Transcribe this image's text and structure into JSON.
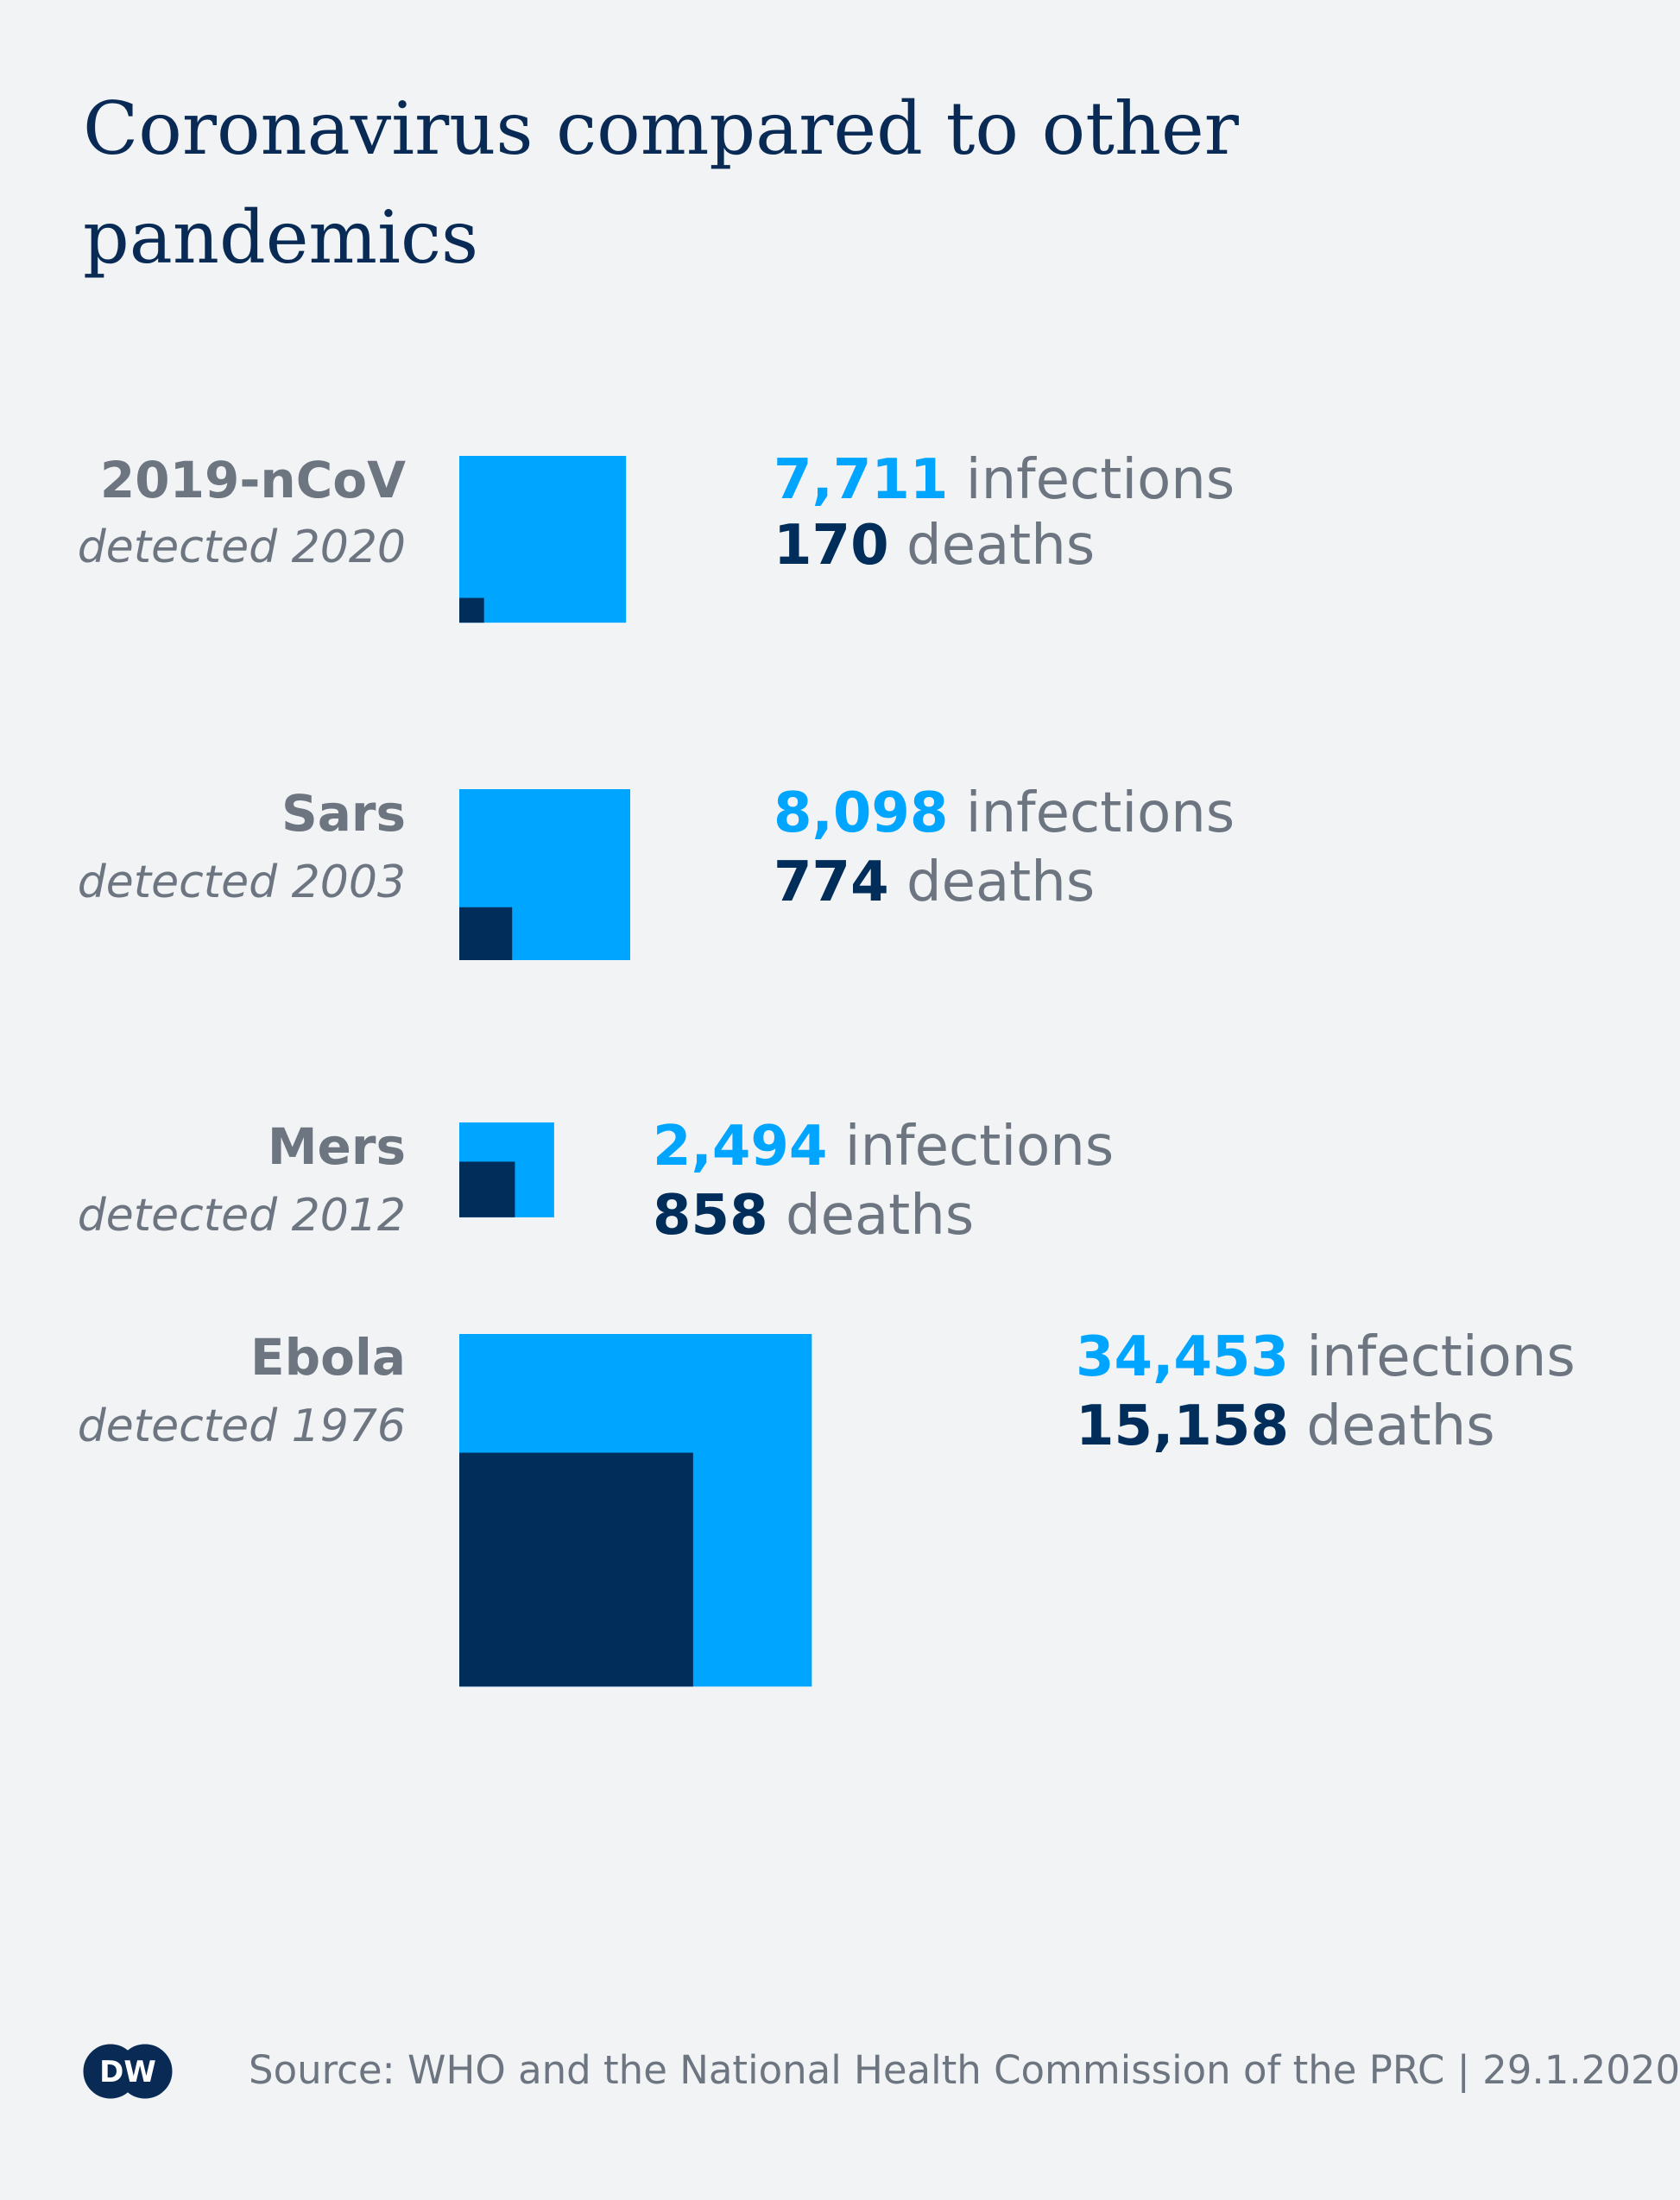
{
  "title": "Coronavirus compared to other pandemics",
  "chart_data": {
    "type": "area-squares",
    "series_colors": {
      "infections": "#00a5ff",
      "deaths": "#002d5a"
    },
    "items": [
      {
        "name": "2019-nCoV",
        "detected": "detected 2020",
        "infections": 7711,
        "deaths": 170,
        "infections_label": "7,711",
        "deaths_label": "170",
        "infections_word": "infections",
        "deaths_word": "deaths"
      },
      {
        "name": "Sars",
        "detected": "detected 2003",
        "infections": 8098,
        "deaths": 774,
        "infections_label": "8,098",
        "deaths_label": "774",
        "infections_word": "infections",
        "deaths_word": "deaths"
      },
      {
        "name": "Mers",
        "detected": "detected 2012",
        "infections": 2494,
        "deaths": 858,
        "infections_label": "2,494",
        "deaths_label": "858",
        "infections_word": "infections",
        "deaths_word": "deaths"
      },
      {
        "name": "Ebola",
        "detected": "detected 1976",
        "infections": 34453,
        "deaths": 15158,
        "infections_label": "34,453",
        "deaths_label": "15,158",
        "infections_word": "infections",
        "deaths_word": "deaths"
      }
    ]
  },
  "source": "Source: WHO and the National Health Commission of the PRC | 29.1.2020",
  "logo": {
    "text": "DW",
    "icon": "dw-logo-icon"
  },
  "colors": {
    "background": "#f1f3f5",
    "title": "#082a54",
    "label_gray": "#6c7580",
    "infections_blue": "#00a5ff",
    "deaths_navy": "#002d5a"
  }
}
